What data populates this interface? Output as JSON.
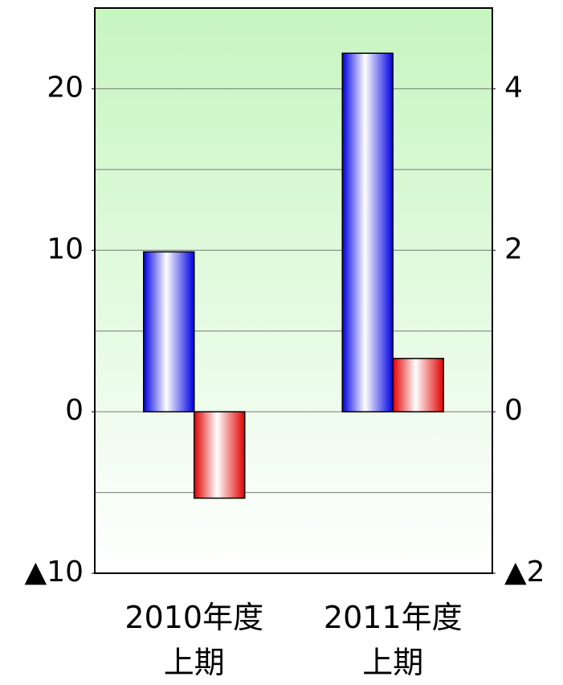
{
  "chart_data": {
    "type": "bar",
    "categories": [
      "2010年度\n上期",
      "2011年度\n上期"
    ],
    "series": [
      {
        "color": "#0000e0",
        "values": [
          9.9,
          22.2
        ]
      },
      {
        "color": "#e00000",
        "values": [
          -1.07,
          0.66
        ],
        "axis": "y2"
      }
    ],
    "ylim": [
      -10,
      25
    ],
    "yticks": [
      {
        "value": -10,
        "label": "▲10"
      },
      0,
      10,
      20
    ],
    "y2lim": [
      -2,
      5
    ],
    "y2ticks": [
      {
        "value": -2,
        "label": "▲2"
      },
      0,
      2,
      4
    ],
    "ygrid": [
      -5,
      0,
      5,
      10,
      15,
      20
    ],
    "grid": true
  }
}
